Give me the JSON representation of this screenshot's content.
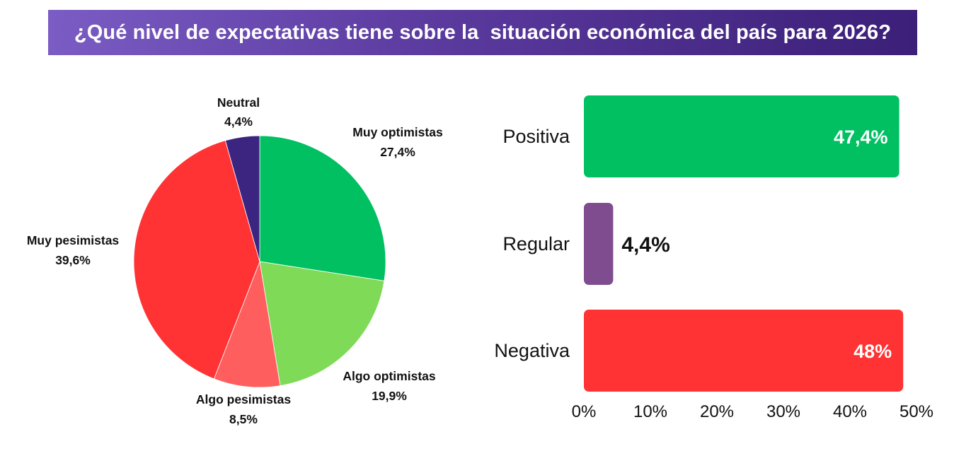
{
  "title": "¿Qué nivel de expectativas tiene sobre la  situación económica del país para 2026?",
  "chart_data": [
    {
      "type": "pie",
      "title": "",
      "slices": [
        {
          "name": "Muy optimistas",
          "label": "27,4%",
          "value": 27.4,
          "color": "#00c062"
        },
        {
          "name": "Algo optimistas",
          "label": "19,9%",
          "value": 19.9,
          "color": "#7fda57"
        },
        {
          "name": "Algo pesimistas",
          "label": "8,5%",
          "value": 8.5,
          "color": "#ff5e5e"
        },
        {
          "name": "Muy pesimistas",
          "label": "39,6%",
          "value": 39.6,
          "color": "#ff3333"
        },
        {
          "name": "Neutral",
          "label": "4,4%",
          "value": 4.4,
          "color": "#3c2580"
        }
      ],
      "start": "12 o'clock, clockwise"
    },
    {
      "type": "bar",
      "orientation": "horizontal",
      "title": "",
      "categories": [
        "Positiva",
        "Regular",
        "Negativa"
      ],
      "values": [
        47.4,
        4.4,
        48
      ],
      "value_labels": [
        "47,4%",
        "4,4%",
        "48%"
      ],
      "colors": [
        "#00c062",
        "#7f4c8f",
        "#ff3333"
      ],
      "xlim": [
        0,
        50
      ],
      "xticks": [
        "0%",
        "10%",
        "20%",
        "30%",
        "40%",
        "50%"
      ],
      "xlabel": "",
      "ylabel": "",
      "grid": false
    }
  ]
}
